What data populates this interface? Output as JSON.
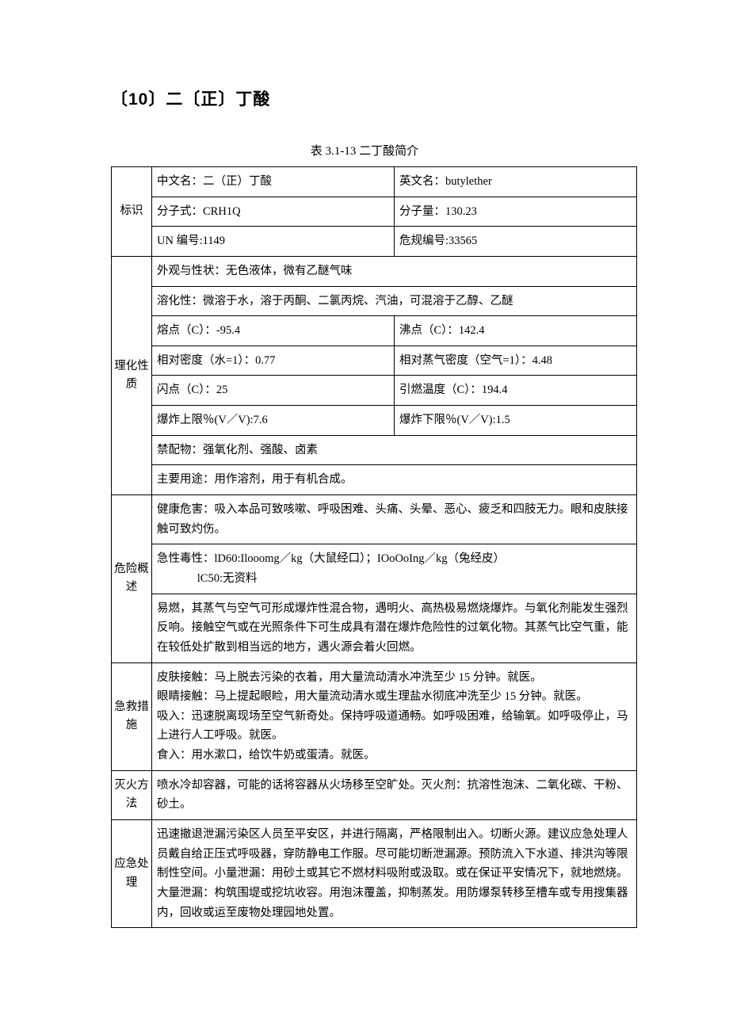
{
  "heading": "〔10〕二〔正〕丁酸",
  "caption": "表 3.1-13 二丁酸简介",
  "table": {
    "identifier": {
      "label": "标识",
      "name_cn": "中文名：二（正）丁酸",
      "name_en": "英文名：butylether",
      "formula": "分子式：CRH1Q",
      "mw": "分子量：130.23",
      "un": "UN 编号:1149",
      "hazreg": "危规编号:33565"
    },
    "phys": {
      "label": "理化性质",
      "appearance": "外观与性状：无色液体，微有乙醚气味",
      "solubility": "溶化性：微溶于水，溶于丙酮、二氯丙烷、汽油，可混溶于乙醇、乙醚",
      "mp": "熔点（C）：-95.4",
      "bp": "沸点（C）：142.4",
      "density": "相对密度（水=1）：0.77",
      "vdensity": "相对蒸气密度（空气=1）：4.48",
      "flash": "闪点（C）：25",
      "ignition": "引燃温度（C）：194.4",
      "uel": "爆炸上限％(V／V):7.6",
      "lel": "爆炸下限％(V／V):1.5",
      "incompat": "禁配物：强氧化剂、强酸、卤素",
      "use": "主要用途：用作溶剂，用于有机合成。"
    },
    "hazard": {
      "label": "危险概述",
      "health": "健康危害：吸入本品可致咳嗽、呼吸困难、头痛、头晕、恶心、疲乏和四肢无力。眼和皮肤接触可致灼伤。",
      "tox_line1": "急性毒性：lD60:Ilooomg／kg（大鼠经口）；IOoOoIng／kg（兔经皮）",
      "tox_line2": "lC50:无资料",
      "fire": "易燃，其蒸气与空气可形成爆炸性混合物，遇明火、高热极易燃烧爆炸。与氧化剂能发生强烈反响。接触空气或在光照条件下可生成具有潜在爆炸危险性的过氧化物。其蒸气比空气重，能在较低处扩散到相当远的地方，遇火源会着火回燃。"
    },
    "firstaid": {
      "label": "急救措施",
      "skin": "皮肤接触：马上脱去污染的衣着，用大量流动清水冲洗至少 15 分钟。就医。",
      "eye": "眼睛接触：马上提起眼睑，用大量流动清水或生理盐水彻底冲洗至少 15 分钟。就医。",
      "inhale": "吸入：迅速脱离现场至空气新奇处。保持呼吸道通畅。如呼吸困难，给输氧。如呼吸停止，马上进行人工呼吸。就医。",
      "ingest": "食入：用水漱口，给饮牛奶或蛋清。就医。"
    },
    "firefight": {
      "label": "灭火方法",
      "text": "喷水冷却容器，可能的话将容器从火场移至空旷处。灭火剂：抗溶性泡沫、二氧化碳、干粉、砂土。"
    },
    "emergency": {
      "label": "应急处理",
      "text": "迅速撤退泄漏污染区人员至平安区，并进行隔离，严格限制出入。切断火源。建议应急处理人员戴自给正压式呼吸器，穿防静电工作服。尽可能切断泄漏源。预防流入下水道、排洪沟等限制性空间。小量泄漏：用砂土或其它不燃材料吸附或汲取。或在保证平安情况下，就地燃烧。大量泄漏：构筑围堤或挖坑收容。用泡沫覆盖，抑制蒸发。用防爆泵转移至槽车或专用搜集器内，回收或运至废物处理园地处置。"
    }
  }
}
